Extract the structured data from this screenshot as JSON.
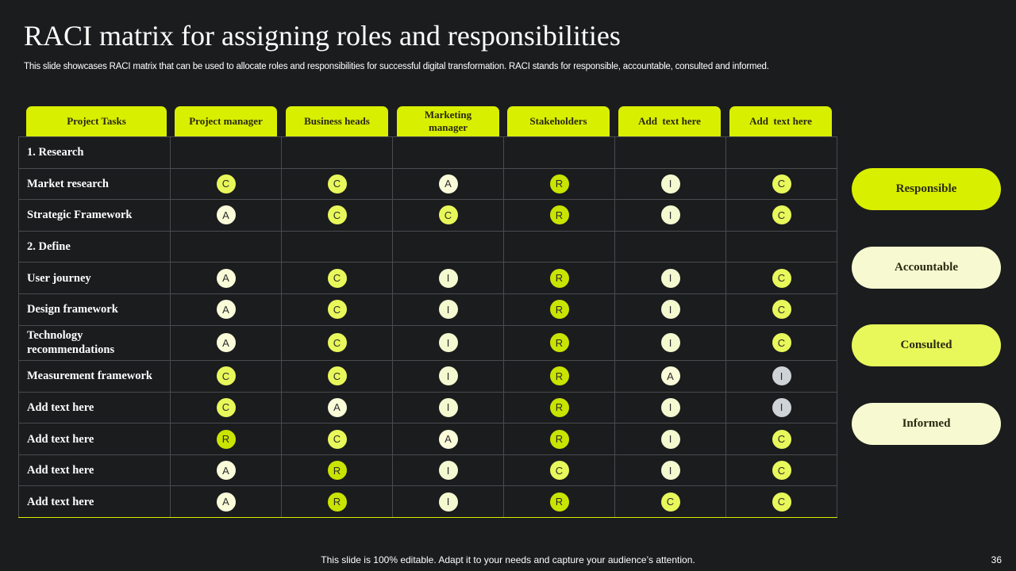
{
  "title": "RACI matrix for assigning roles and responsibilities",
  "subtitle": "This slide showcases RACI matrix that can be used to allocate roles and responsibilities for successful digital transformation. RACI stands for responsible, accountable, consulted and informed.",
  "colors": {
    "background": "#1b1c1e",
    "responsible": "#c9e400",
    "accountable": "#fafbd9",
    "consulted": "#e8f85a",
    "informed": "#f5f9d0",
    "header": "#d9ef00",
    "muted_informed": "#cfd3d8"
  },
  "headers": [
    "Project Tasks",
    "Project manager",
    "Business heads",
    "Marketing manager",
    "Stakeholders",
    "Add  text here",
    "Add  text here"
  ],
  "rows": [
    {
      "task": "1. Research",
      "section": true,
      "values": []
    },
    {
      "task": "Market research",
      "values": [
        "C",
        "C",
        "A",
        "R",
        "I",
        "C"
      ]
    },
    {
      "task": "Strategic Framework",
      "values": [
        "A",
        "C",
        "C",
        "R",
        "I",
        "C"
      ]
    },
    {
      "task": "2. Define",
      "section": true,
      "values": []
    },
    {
      "task": "User journey",
      "values": [
        "A",
        "C",
        "I",
        "R",
        "I",
        "C"
      ]
    },
    {
      "task": "Design framework",
      "values": [
        "A",
        "C",
        "I",
        "R",
        "I",
        "C"
      ]
    },
    {
      "task": "Technology recommendations",
      "values": [
        "A",
        "C",
        "I",
        "R",
        "I",
        "C"
      ]
    },
    {
      "task": "Measurement framework",
      "values": [
        "C",
        "C",
        "I",
        "R",
        "A",
        "I"
      ]
    },
    {
      "task": "Add text here",
      "values": [
        "C",
        "A",
        "I",
        "R",
        "I",
        "I"
      ]
    },
    {
      "task": "Add text here",
      "values": [
        "R",
        "C",
        "A",
        "R",
        "I",
        "C"
      ]
    },
    {
      "task": "Add text here",
      "values": [
        "A",
        "R",
        "I",
        "C",
        "I",
        "C"
      ]
    },
    {
      "task": "Add text here",
      "values": [
        "A",
        "R",
        "I",
        "R",
        "C",
        "C"
      ]
    }
  ],
  "legend": [
    {
      "label": "Responsible",
      "color": "#d9ef00"
    },
    {
      "label": "Accountable",
      "color": "#f7fad0"
    },
    {
      "label": "Consulted",
      "color": "#e8f85a"
    },
    {
      "label": "Informed",
      "color": "#f7fad0"
    }
  ],
  "footer": "This slide is 100% editable. Adapt it to your needs and capture your audience’s attention.",
  "page_number": "36"
}
